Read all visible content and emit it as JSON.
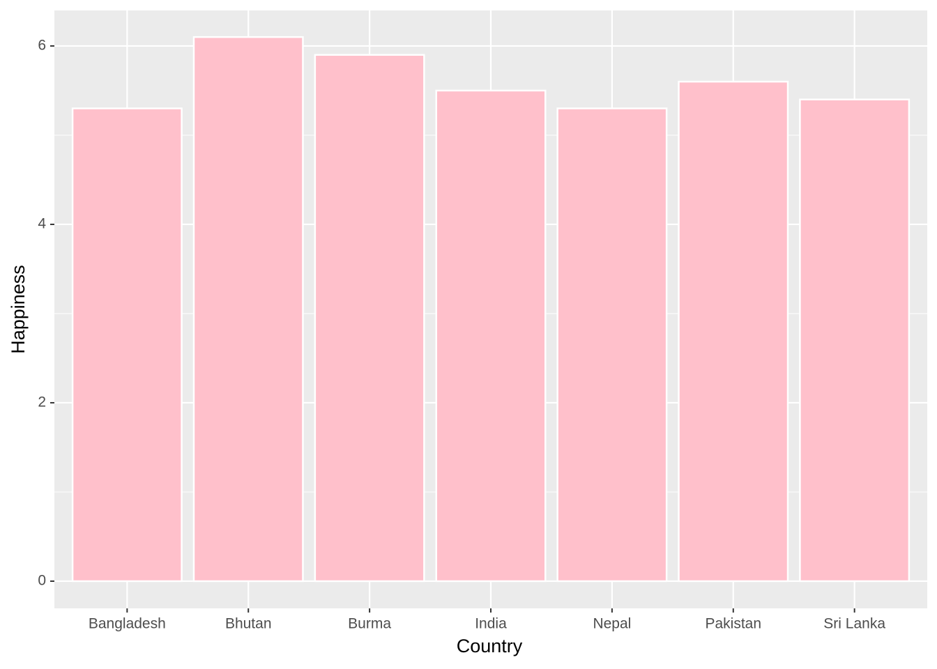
{
  "chart_data": {
    "type": "bar",
    "x_label": "Country",
    "y_label": "Happiness",
    "categories": [
      "Bangladesh",
      "Bhutan",
      "Burma",
      "India",
      "Nepal",
      "Pakistan",
      "Sri Lanka"
    ],
    "values": [
      5.3,
      6.1,
      5.9,
      5.5,
      5.3,
      5.6,
      5.4
    ],
    "color": "#ffc0cb",
    "ylim": [
      -0.305,
      6.398
    ],
    "yticks": [
      0,
      2,
      4,
      6
    ],
    "minor_yticks": [
      1,
      3,
      5
    ],
    "grid": true
  }
}
